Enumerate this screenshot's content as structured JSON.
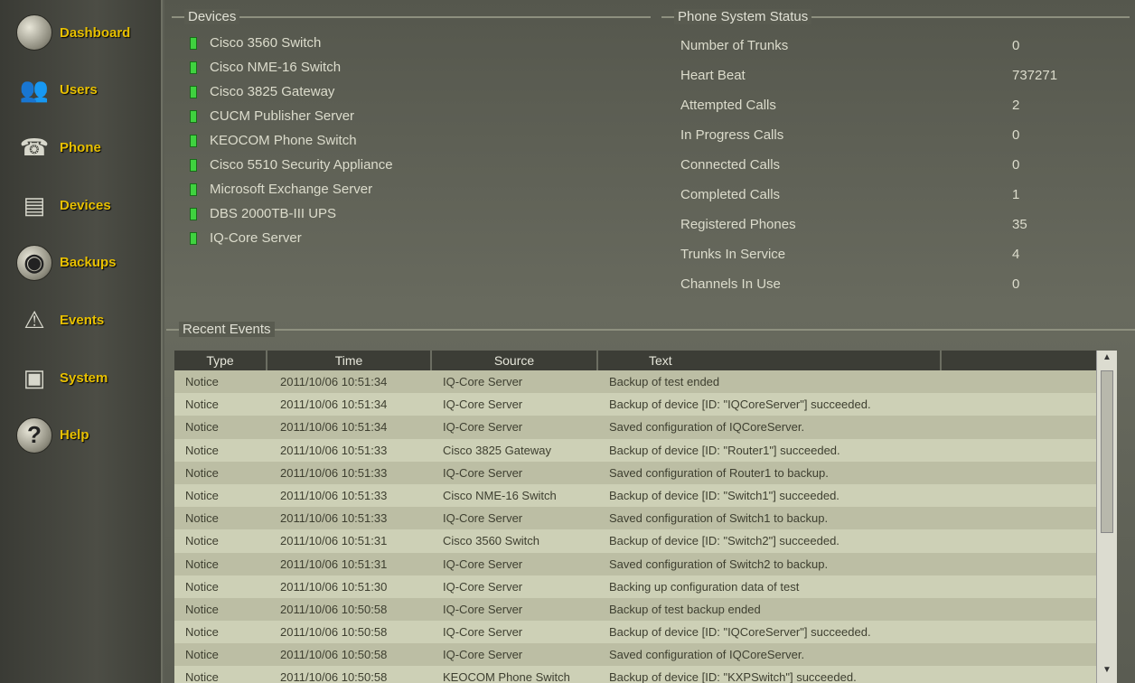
{
  "sidebar": {
    "items": [
      {
        "label": "Dashboard",
        "icon": "dashboard-icon"
      },
      {
        "label": "Users",
        "icon": "users-icon"
      },
      {
        "label": "Phone",
        "icon": "phone-icon"
      },
      {
        "label": "Devices",
        "icon": "devices-icon"
      },
      {
        "label": "Backups",
        "icon": "backups-icon"
      },
      {
        "label": "Events",
        "icon": "warning-icon"
      },
      {
        "label": "System",
        "icon": "system-icon"
      },
      {
        "label": "Help",
        "icon": "help-icon"
      }
    ]
  },
  "devices": {
    "title": "Devices",
    "status_color": "#3fd23f",
    "items": [
      "Cisco 3560 Switch",
      "Cisco NME-16 Switch",
      "Cisco 3825 Gateway",
      "CUCM Publisher Server",
      "KEOCOM Phone Switch",
      "Cisco 5510 Security Appliance",
      "Microsoft Exchange Server",
      "DBS 2000TB-III UPS",
      "IQ-Core Server"
    ]
  },
  "phone_status": {
    "title": "Phone System Status",
    "rows": [
      {
        "label": "Number of Trunks",
        "value": "0"
      },
      {
        "label": "Heart Beat",
        "value": "737271"
      },
      {
        "label": "Attempted Calls",
        "value": "2"
      },
      {
        "label": "In Progress Calls",
        "value": "0"
      },
      {
        "label": "Connected Calls",
        "value": "0"
      },
      {
        "label": "Completed Calls",
        "value": "1"
      },
      {
        "label": "Registered Phones",
        "value": "35"
      },
      {
        "label": "Trunks In Service",
        "value": "4"
      },
      {
        "label": "Channels In Use",
        "value": "0"
      }
    ]
  },
  "events": {
    "title": "Recent Events",
    "columns": [
      "Type",
      "Time",
      "Source",
      "Text"
    ],
    "rows": [
      [
        "Notice",
        "2011/10/06 10:51:34",
        "IQ-Core Server",
        "Backup of test ended"
      ],
      [
        "Notice",
        "2011/10/06 10:51:34",
        "IQ-Core Server",
        "Backup of device [ID: \"IQCoreServer\"] succeeded."
      ],
      [
        "Notice",
        "2011/10/06 10:51:34",
        "IQ-Core Server",
        "Saved configuration of IQCoreServer."
      ],
      [
        "Notice",
        "2011/10/06 10:51:33",
        "Cisco 3825 Gateway",
        "Backup of device [ID: \"Router1\"] succeeded."
      ],
      [
        "Notice",
        "2011/10/06 10:51:33",
        "IQ-Core Server",
        "Saved configuration of Router1 to backup."
      ],
      [
        "Notice",
        "2011/10/06 10:51:33",
        "Cisco NME-16 Switch",
        "Backup of device [ID: \"Switch1\"] succeeded."
      ],
      [
        "Notice",
        "2011/10/06 10:51:33",
        "IQ-Core Server",
        "Saved configuration of Switch1 to backup."
      ],
      [
        "Notice",
        "2011/10/06 10:51:31",
        "Cisco 3560 Switch",
        "Backup of device [ID: \"Switch2\"] succeeded."
      ],
      [
        "Notice",
        "2011/10/06 10:51:31",
        "IQ-Core Server",
        "Saved configuration of Switch2 to backup."
      ],
      [
        "Notice",
        "2011/10/06 10:51:30",
        "IQ-Core Server",
        "Backing up configuration data of test"
      ],
      [
        "Notice",
        "2011/10/06 10:50:58",
        "IQ-Core Server",
        "Backup of test backup ended"
      ],
      [
        "Notice",
        "2011/10/06 10:50:58",
        "IQ-Core Server",
        "Backup of device [ID: \"IQCoreServer\"] succeeded."
      ],
      [
        "Notice",
        "2011/10/06 10:50:58",
        "IQ-Core Server",
        "Saved configuration of IQCoreServer."
      ],
      [
        "Notice",
        "2011/10/06 10:50:58",
        "KEOCOM Phone Switch",
        "Backup of device [ID: \"KXPSwitch\"] succeeded."
      ]
    ]
  }
}
